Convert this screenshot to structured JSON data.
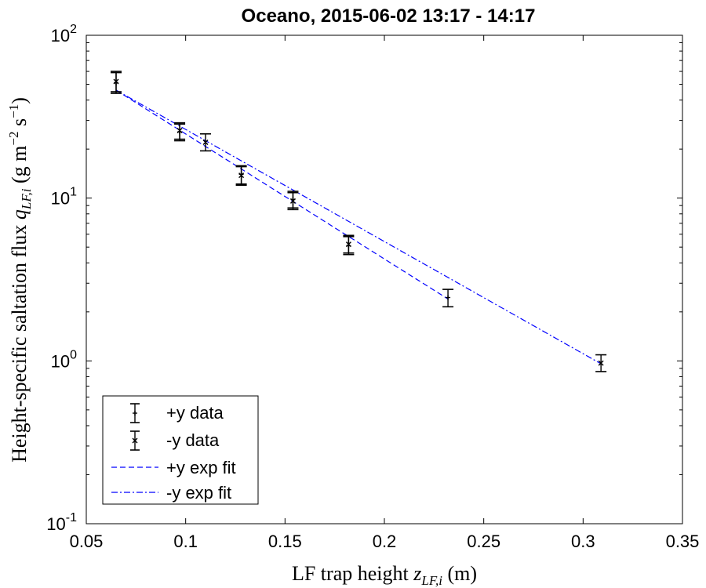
{
  "chart_data": {
    "type": "scatter",
    "title": "Oceano, 2015-06-02 13:17 - 14:17",
    "xlabel": {
      "main": "LF trap height ",
      "var": "z",
      "sub": "LF,i",
      "unit": " (m)"
    },
    "ylabel": {
      "main": "Height-specific saltation flux ",
      "var": "q",
      "sub": "LF,i",
      "unit_pre": " (g m",
      "exp1": "−2",
      "unit_mid": " s",
      "exp2": "−1",
      "unit_post": ")"
    },
    "xlim": [
      0.05,
      0.35
    ],
    "xticks": [
      "0.05",
      "0.1",
      "0.15",
      "0.2",
      "0.25",
      "0.3",
      "0.35"
    ],
    "yscale": "log",
    "ylim": [
      0.1,
      100
    ],
    "yticks": [
      {
        "base": "10",
        "exp": "-1"
      },
      {
        "base": "10",
        "exp": "0"
      },
      {
        "base": "10",
        "exp": "1"
      },
      {
        "base": "10",
        "exp": "2"
      }
    ],
    "grid": false,
    "legend_position": "bottom-left",
    "series": [
      {
        "name": "+y data",
        "marker": "plus",
        "color": "#000000",
        "points": [
          {
            "x": 0.065,
            "y": 51,
            "lo": 44,
            "hi": 59
          },
          {
            "x": 0.097,
            "y": 25.5,
            "lo": 22.5,
            "hi": 28.5
          },
          {
            "x": 0.128,
            "y": 14,
            "lo": 12.2,
            "hi": 15.8
          },
          {
            "x": 0.154,
            "y": 9.8,
            "lo": 8.7,
            "hi": 11
          },
          {
            "x": 0.182,
            "y": 5.1,
            "lo": 4.5,
            "hi": 5.8
          },
          {
            "x": 0.232,
            "y": 2.45,
            "lo": 2.15,
            "hi": 2.75
          }
        ]
      },
      {
        "name": "-y data",
        "marker": "x",
        "color": "#000000",
        "points": [
          {
            "x": 0.065,
            "y": 52,
            "lo": 45,
            "hi": 60
          },
          {
            "x": 0.097,
            "y": 26,
            "lo": 23,
            "hi": 29
          },
          {
            "x": 0.11,
            "y": 22,
            "lo": 19.5,
            "hi": 24.8
          },
          {
            "x": 0.128,
            "y": 13.8,
            "lo": 12,
            "hi": 15.6
          },
          {
            "x": 0.154,
            "y": 9.6,
            "lo": 8.5,
            "hi": 10.8
          },
          {
            "x": 0.182,
            "y": 5.2,
            "lo": 4.6,
            "hi": 5.9
          },
          {
            "x": 0.309,
            "y": 0.97,
            "lo": 0.86,
            "hi": 1.09
          }
        ]
      },
      {
        "name": "+y exp fit",
        "style": "dashed",
        "color": "#0000ff",
        "x": [
          0.065,
          0.232
        ],
        "y": [
          46,
          2.4
        ]
      },
      {
        "name": "-y exp fit",
        "style": "dashdot",
        "color": "#0000ff",
        "x": [
          0.065,
          0.309
        ],
        "y": [
          46,
          0.96
        ]
      }
    ]
  }
}
